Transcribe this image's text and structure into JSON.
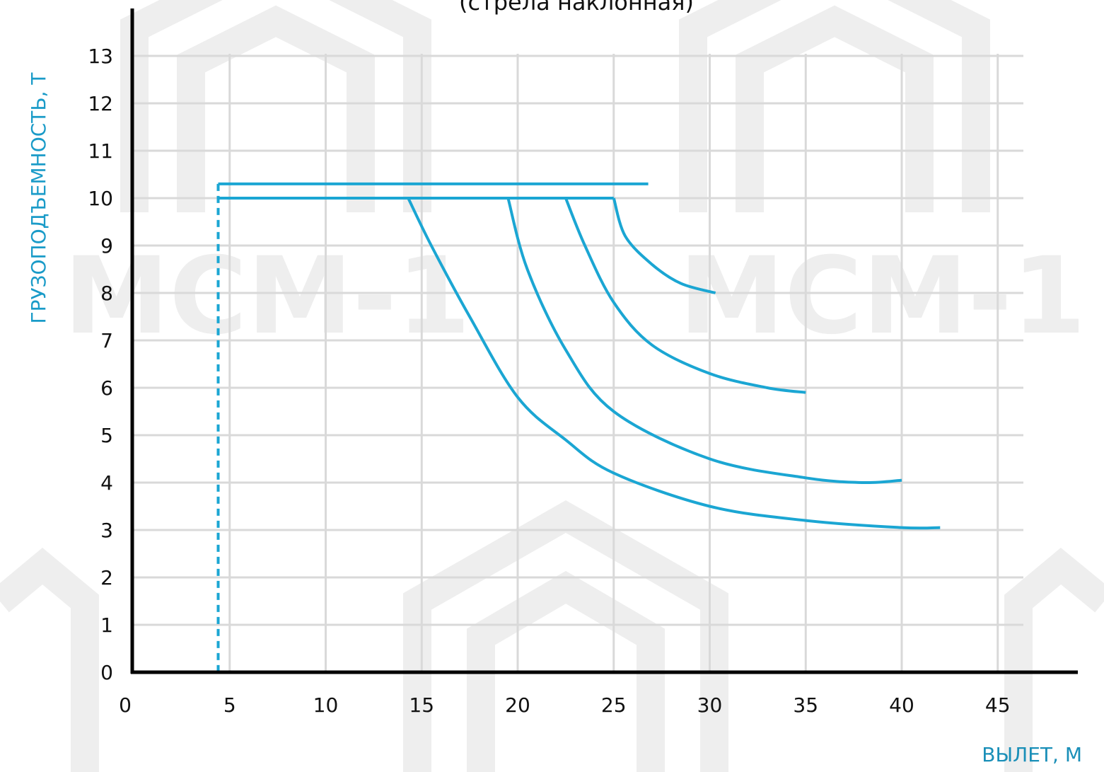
{
  "chart_data": {
    "type": "line",
    "title": "(стрела наклонная)",
    "xlabel": "ВЫЛЕТ, М",
    "ylabel": "ГРУЗОПОДЪЕМНОСТЬ, Т",
    "xlim": [
      0,
      48
    ],
    "ylim": [
      0,
      13.5
    ],
    "x_ticks": [
      "0",
      "5",
      "10",
      "15",
      "20",
      "25",
      "30",
      "35",
      "40",
      "45"
    ],
    "y_ticks": [
      "0",
      "1",
      "2",
      "3",
      "4",
      "5",
      "6",
      "7",
      "8",
      "9",
      "10",
      "11",
      "12",
      "13"
    ],
    "grid": true,
    "series": [
      {
        "points": [
          [
            4.4,
            10.3
          ],
          [
            26.8,
            10.3
          ]
        ]
      },
      {
        "points": [
          [
            4.4,
            10.0
          ],
          [
            25.0,
            10.0
          ]
        ]
      },
      {
        "style": "dashed",
        "points": [
          [
            4.4,
            10.3
          ],
          [
            4.4,
            0
          ]
        ]
      },
      {
        "points": [
          [
            14.3,
            10.0
          ],
          [
            15.5,
            9.0
          ],
          [
            17.5,
            7.5
          ],
          [
            20.0,
            5.8
          ],
          [
            22.5,
            4.9
          ],
          [
            25.0,
            4.2
          ],
          [
            30.0,
            3.5
          ],
          [
            35.0,
            3.2
          ],
          [
            40.0,
            3.05
          ],
          [
            42.0,
            3.05
          ]
        ]
      },
      {
        "points": [
          [
            19.5,
            10.0
          ],
          [
            20.5,
            8.5
          ],
          [
            22.5,
            6.8
          ],
          [
            25.0,
            5.5
          ],
          [
            30.0,
            4.5
          ],
          [
            35.0,
            4.1
          ],
          [
            38.0,
            4.0
          ],
          [
            40.0,
            4.05
          ]
        ]
      },
      {
        "points": [
          [
            22.5,
            10.0
          ],
          [
            23.5,
            9.0
          ],
          [
            25.0,
            7.8
          ],
          [
            27.0,
            6.9
          ],
          [
            30.0,
            6.3
          ],
          [
            33.0,
            6.0
          ],
          [
            35.0,
            5.9
          ]
        ]
      },
      {
        "points": [
          [
            25.0,
            10.0
          ],
          [
            25.6,
            9.2
          ],
          [
            27.0,
            8.6
          ],
          [
            28.5,
            8.2
          ],
          [
            30.3,
            8.0
          ]
        ]
      }
    ],
    "colors": {
      "line": "#1ba6d3",
      "axis": "#000000",
      "grid": "#d9d9d9",
      "ylabel": "#1a9bc8",
      "xlabel": "#1a8fb8",
      "watermark": "#eeeeee"
    }
  },
  "watermark": {
    "text": "МСМ-1"
  }
}
